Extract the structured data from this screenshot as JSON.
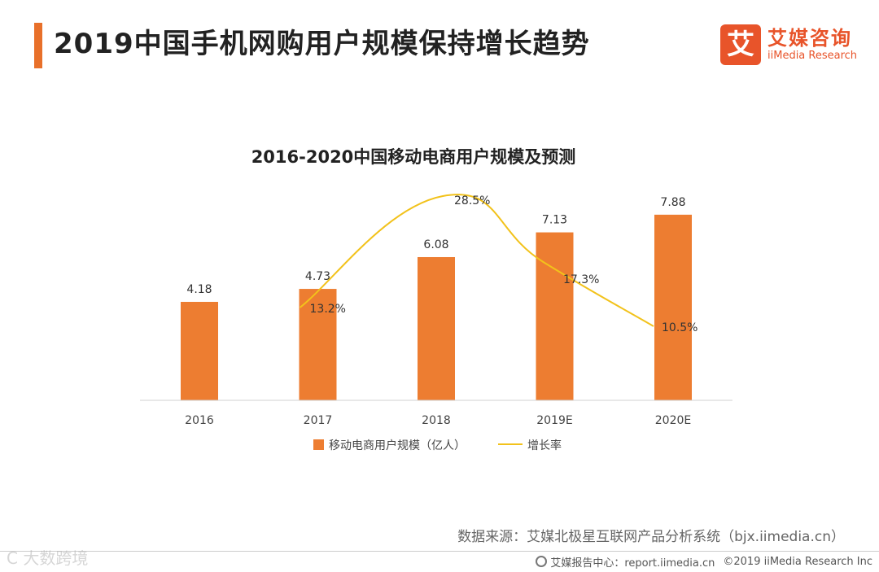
{
  "header": {
    "title": "2019中国手机网购用户规模保持增长趋势"
  },
  "logo": {
    "mark": "艾",
    "name_cn": "艾媒咨询",
    "name_en": "iiMedia Research"
  },
  "colors": {
    "accent": "#e8702a",
    "bar": "#ed7d31",
    "line": "#f2c21b",
    "logo": "#e8542a"
  },
  "chart_data": {
    "type": "bar",
    "title": "2016-2020中国移动电商用户规模及预测",
    "categories": [
      "2016",
      "2017",
      "2018",
      "2019E",
      "2020E"
    ],
    "ylim": [
      0,
      9
    ],
    "y2lim": [
      0,
      35
    ],
    "grid": false,
    "legend_position": "bottom",
    "series": [
      {
        "name": "移动电商用户规模（亿人）",
        "kind": "bar",
        "values": [
          4.18,
          4.73,
          6.08,
          7.13,
          7.88
        ],
        "labels": [
          "4.18",
          "4.73",
          "6.08",
          "7.13",
          "7.88"
        ]
      },
      {
        "name": "增长率",
        "kind": "line",
        "axis": "secondary",
        "values": [
          null,
          13.2,
          28.5,
          17.3,
          10.5
        ],
        "labels": [
          "",
          "13.2%",
          "28.5%",
          "17.3%",
          "10.5%"
        ]
      }
    ]
  },
  "footer": {
    "source": "数据来源：艾媒北极星互联网产品分析系统（bjx.iimedia.cn）",
    "report": "艾媒报告中心：report.iimedia.cn",
    "copyright": "©2019  iiMedia Research  Inc",
    "watermark": "C  大数跨境"
  }
}
